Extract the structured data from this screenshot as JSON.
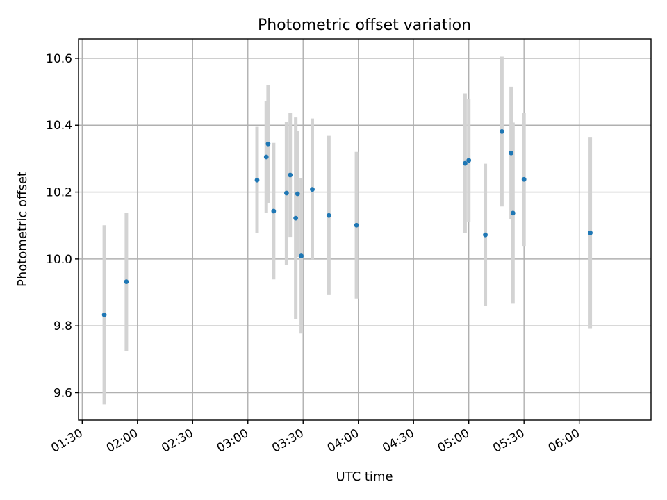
{
  "chart_data": {
    "type": "scatter",
    "title": "Photometric offset variation",
    "xlabel": "UTC time",
    "ylabel": "Photometric offset",
    "x_unit": "time of day (UTC)",
    "xlim": [
      "01:28",
      "06:39"
    ],
    "ylim": [
      9.518,
      10.658
    ],
    "x_ticks": [
      "01:30",
      "02:00",
      "02:30",
      "03:00",
      "03:30",
      "04:00",
      "04:30",
      "05:00",
      "05:30",
      "06:00"
    ],
    "y_ticks": [
      9.6,
      9.8,
      10.0,
      10.2,
      10.4,
      10.6
    ],
    "y_tick_labels": [
      "9.6",
      "9.8",
      "10.0",
      "10.2",
      "10.4",
      "10.6"
    ],
    "grid": true,
    "legend": "none",
    "marker_color": "#1f77b4",
    "errorbar_color": "#d3d3d3",
    "points": [
      {
        "x": "01:42",
        "y": 9.833,
        "err": 0.268
      },
      {
        "x": "01:54",
        "y": 9.932,
        "err": 0.207
      },
      {
        "x": "03:05",
        "y": 10.236,
        "err": 0.159
      },
      {
        "x": "03:10",
        "y": 10.305,
        "err": 0.168
      },
      {
        "x": "03:11",
        "y": 10.344,
        "err": 0.176
      },
      {
        "x": "03:14",
        "y": 10.143,
        "err": 0.204
      },
      {
        "x": "03:21",
        "y": 10.197,
        "err": 0.214
      },
      {
        "x": "03:23",
        "y": 10.251,
        "err": 0.185
      },
      {
        "x": "03:26",
        "y": 10.122,
        "err": 0.301
      },
      {
        "x": "03:27",
        "y": 10.195,
        "err": 0.189
      },
      {
        "x": "03:29",
        "y": 10.009,
        "err": 0.232
      },
      {
        "x": "03:35",
        "y": 10.208,
        "err": 0.212
      },
      {
        "x": "03:44",
        "y": 10.13,
        "err": 0.238
      },
      {
        "x": "03:59",
        "y": 10.101,
        "err": 0.219
      },
      {
        "x": "04:58",
        "y": 10.286,
        "err": 0.209
      },
      {
        "x": "05:00",
        "y": 10.295,
        "err": 0.183
      },
      {
        "x": "05:09",
        "y": 10.072,
        "err": 0.213
      },
      {
        "x": "05:18",
        "y": 10.381,
        "err": 0.224
      },
      {
        "x": "05:23",
        "y": 10.317,
        "err": 0.198
      },
      {
        "x": "05:24",
        "y": 10.137,
        "err": 0.271
      },
      {
        "x": "05:30",
        "y": 10.238,
        "err": 0.199
      },
      {
        "x": "06:06",
        "y": 10.078,
        "err": 0.287
      }
    ]
  }
}
